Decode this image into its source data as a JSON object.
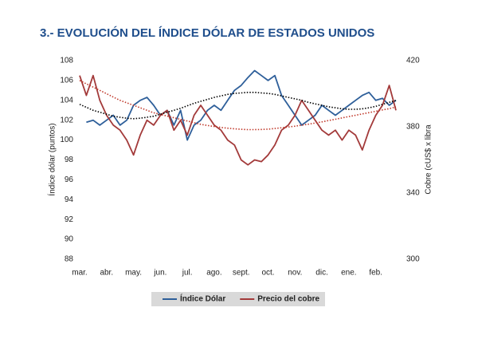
{
  "chart_data": {
    "type": "line",
    "title": "3.- EVOLUCIÓN DEL ÍNDICE DÓLAR DE ESTADOS UNIDOS",
    "y_label": "Índice dólar (puntos)",
    "y2_label": "Cobre (cUS$ x libra",
    "categories": [
      "mar.",
      null,
      null,
      null,
      "abr.",
      null,
      null,
      null,
      "may.",
      null,
      null,
      null,
      "jun.",
      null,
      null,
      null,
      "jul.",
      null,
      null,
      null,
      "ago.",
      null,
      null,
      null,
      "sept.",
      null,
      null,
      null,
      "oct.",
      null,
      null,
      null,
      "nov.",
      null,
      null,
      null,
      "dic.",
      null,
      null,
      null,
      "ene.",
      null,
      null,
      null,
      "feb.",
      null,
      null,
      null
    ],
    "ylim": [
      88,
      108
    ],
    "yticks": [
      88,
      90,
      92,
      94,
      96,
      98,
      100,
      102,
      104,
      106,
      108
    ],
    "y2lim": [
      300,
      420
    ],
    "y2ticks": [
      300,
      340,
      380,
      420
    ],
    "grid": false,
    "legend": "bottom",
    "series": [
      {
        "name": "Índice Dólar",
        "color": "#2e5f9a",
        "style": "solid",
        "values": [
          null,
          101.8,
          102,
          101.5,
          102,
          102.5,
          101.5,
          102,
          103.5,
          104,
          104.3,
          103.5,
          102.5,
          103,
          101.5,
          103,
          100,
          101.5,
          102,
          103,
          103.5,
          103,
          104,
          105,
          105.5,
          106.3,
          107,
          106.5,
          106,
          106.5,
          104.5,
          103.5,
          102.5,
          101.5,
          102,
          102.5,
          103.5,
          103,
          102.5,
          103,
          103.5,
          104,
          104.5,
          104.8,
          104,
          104.2,
          103.5,
          104
        ]
      },
      {
        "name": "Precio del cobre",
        "color": "#a33a3a",
        "style": "solid",
        "axis": "y2",
        "values": [
          411,
          399,
          411,
          396,
          387,
          381,
          378,
          372,
          363,
          375,
          384,
          381,
          387,
          390,
          378,
          384,
          375,
          387,
          393,
          387,
          381,
          378,
          372,
          369,
          360,
          357,
          360,
          359,
          363,
          369,
          378,
          381,
          387,
          396,
          390,
          384,
          378,
          375,
          378,
          372,
          378,
          375,
          366,
          378,
          387,
          393,
          405,
          390
        ]
      },
      {
        "color": "#000000",
        "style": "dotted",
        "values": [
          103.6,
          103.3,
          103.0,
          102.8,
          102.6,
          102.4,
          102.3,
          102.2,
          102.15,
          102.2,
          102.3,
          102.4,
          102.6,
          102.8,
          103.0,
          103.2,
          103.45,
          103.7,
          103.9,
          104.1,
          104.3,
          104.45,
          104.6,
          104.7,
          104.75,
          104.8,
          104.8,
          104.75,
          104.7,
          104.6,
          104.45,
          104.3,
          104.15,
          104.0,
          103.8,
          103.65,
          103.5,
          103.35,
          103.25,
          103.15,
          103.1,
          103.1,
          103.15,
          103.25,
          103.4,
          103.6,
          103.8,
          104.0
        ]
      },
      {
        "color": "#c0392b",
        "style": "dotted",
        "axis": "y2",
        "values": [
          408,
          406,
          404,
          402,
          400,
          398,
          396,
          394.5,
          393,
          391.5,
          390,
          388.5,
          387.5,
          386.5,
          385.5,
          384.5,
          383.5,
          382.5,
          381.5,
          380.8,
          380.2,
          379.6,
          379.2,
          378.8,
          378.5,
          378.3,
          378.3,
          378.4,
          378.6,
          379,
          379.4,
          379.9,
          380.4,
          381,
          381.6,
          382.3,
          383,
          383.8,
          384.6,
          385.4,
          386.2,
          387,
          387.8,
          388.6,
          389.4,
          390.2,
          391,
          392
        ]
      }
    ]
  }
}
